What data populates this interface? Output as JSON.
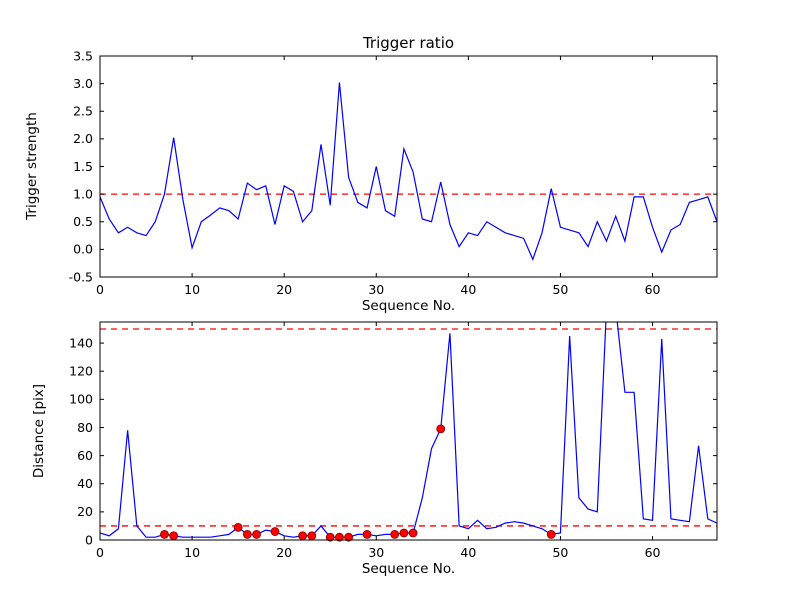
{
  "figure": {
    "background": "#ffffff",
    "axes_color": "#000000"
  },
  "chart_data": [
    {
      "type": "line",
      "title": "Trigger ratio",
      "xlabel": "Sequence No.",
      "ylabel": "Trigger strength",
      "xlim": [
        0,
        67
      ],
      "ylim": [
        -0.5,
        3.5
      ],
      "grid": false,
      "legend": "none",
      "line_color": "#0000ff",
      "threshold_color": "#ff0000",
      "thresholds": [
        1.0
      ],
      "xticks": {
        "values": [
          0,
          10,
          20,
          30,
          40,
          50,
          60
        ],
        "labels": [
          "0",
          "10",
          "20",
          "30",
          "40",
          "50",
          "60"
        ]
      },
      "yticks": {
        "values": [
          -0.5,
          0.0,
          0.5,
          1.0,
          1.5,
          2.0,
          2.5,
          3.0,
          3.5
        ],
        "labels": [
          "-0.5",
          "0.0",
          "0.5",
          "1.0",
          "1.5",
          "2.0",
          "2.5",
          "3.0",
          "3.5"
        ]
      },
      "x_is_index": true,
      "y": [
        0.95,
        0.55,
        0.3,
        0.4,
        0.3,
        0.25,
        0.5,
        1.0,
        2.02,
        0.9,
        0.03,
        0.5,
        0.62,
        0.75,
        0.7,
        0.55,
        1.2,
        1.08,
        1.15,
        0.45,
        1.15,
        1.05,
        0.5,
        0.7,
        1.9,
        0.8,
        3.02,
        1.3,
        0.85,
        0.75,
        1.5,
        0.7,
        0.6,
        1.82,
        1.4,
        0.55,
        0.5,
        1.22,
        0.45,
        0.05,
        0.3,
        0.25,
        0.5,
        0.4,
        0.3,
        0.25,
        0.2,
        -0.18,
        0.3,
        1.1,
        0.4,
        0.35,
        0.3,
        0.05,
        0.5,
        0.15,
        0.6,
        0.15,
        0.95,
        0.95,
        0.4,
        -0.05,
        0.35,
        0.45,
        0.85,
        0.9,
        0.95,
        0.5
      ]
    },
    {
      "type": "line+scatter",
      "title": "",
      "xlabel": "Sequence No.",
      "ylabel": "Distance [pix]",
      "xlim": [
        0,
        67
      ],
      "ylim": [
        0,
        155
      ],
      "grid": false,
      "legend": "none",
      "line_color": "#0000ff",
      "threshold_color": "#ff0000",
      "thresholds": [
        150,
        10
      ],
      "xticks": {
        "values": [
          0,
          10,
          20,
          30,
          40,
          50,
          60
        ],
        "labels": [
          "0",
          "10",
          "20",
          "30",
          "40",
          "50",
          "60"
        ]
      },
      "yticks": {
        "values": [
          0,
          20,
          40,
          60,
          80,
          100,
          120,
          140
        ],
        "labels": [
          "0",
          "20",
          "40",
          "60",
          "80",
          "100",
          "120",
          "140"
        ]
      },
      "x_is_index": true,
      "y": [
        5,
        3,
        8,
        78,
        10,
        2,
        2,
        4,
        3,
        2,
        2,
        2,
        2,
        3,
        4,
        9,
        4,
        4,
        7,
        6,
        3,
        2,
        3,
        3,
        10,
        2,
        2,
        2,
        4,
        4,
        3,
        4,
        4,
        5,
        5,
        30,
        65,
        79,
        147,
        10,
        8,
        14,
        8,
        9,
        12,
        13,
        12,
        10,
        8,
        4,
        5,
        145,
        30,
        22,
        20,
        165,
        165,
        105,
        105,
        15,
        14,
        143,
        15,
        14,
        13,
        67,
        15,
        12
      ],
      "markers": {
        "color": "#ff0000",
        "x": [
          7,
          8,
          15,
          16,
          17,
          19,
          22,
          23,
          25,
          26,
          27,
          29,
          32,
          33,
          34,
          37,
          49
        ],
        "y": [
          4,
          3,
          9,
          4,
          4,
          6,
          3,
          3,
          2,
          2,
          2,
          4,
          4,
          5,
          5,
          79,
          4
        ]
      }
    }
  ]
}
